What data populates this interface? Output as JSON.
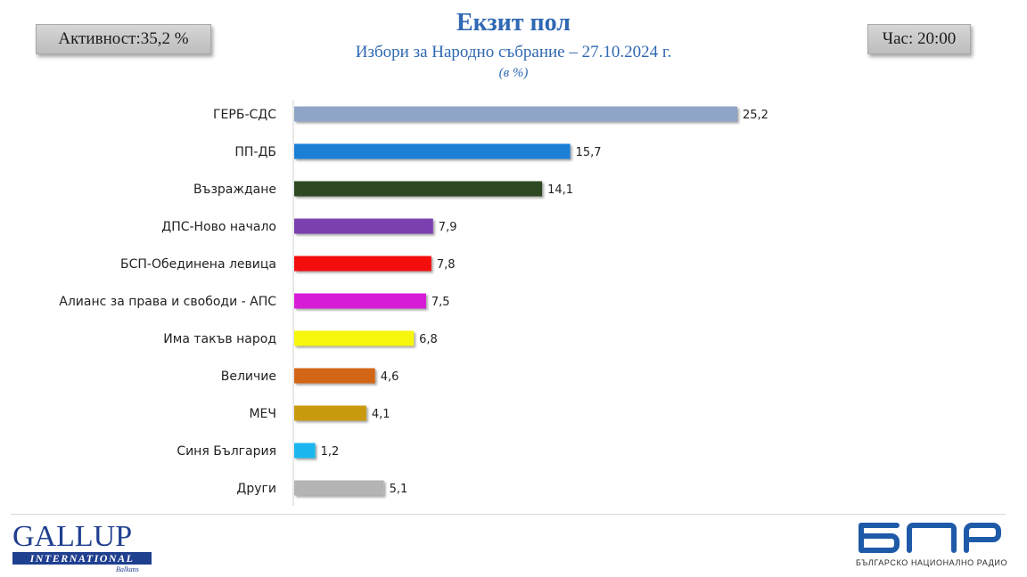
{
  "header": {
    "activity_label": "Активност:35,2 %",
    "time_label": "Час: 20:00",
    "title": "Екзит пол",
    "subtitle": "Избори за Народно събрание – 27.10.2024 г.",
    "unit": "(в %)"
  },
  "chart_data": {
    "type": "bar",
    "orientation": "horizontal",
    "title": "Екзит пол",
    "subtitle": "Избори за Народно събрание – 27.10.2024 г.",
    "unit": "(в %)",
    "categories": [
      "ГЕРБ-СДС",
      "ПП-ДБ",
      "Възраждане",
      "ДПС-Ново начало",
      "БСП-Обединена левица",
      "Алианс за права и свободи - АПС",
      "Има такъв народ",
      "Величие",
      "МЕЧ",
      "Синя България",
      "Други"
    ],
    "values": [
      25.2,
      15.7,
      14.1,
      7.9,
      7.8,
      7.5,
      6.8,
      4.6,
      4.1,
      1.2,
      5.1
    ],
    "value_labels": [
      "25,2",
      "15,7",
      "14,1",
      "7,9",
      "7,8",
      "7,5",
      "6,8",
      "4,6",
      "4,1",
      "1,2",
      "5,1"
    ],
    "colors": [
      "#8fa5c8",
      "#1f7fd6",
      "#2f4a22",
      "#7a3fb0",
      "#f40f0f",
      "#d61cd6",
      "#f7f70f",
      "#d26617",
      "#c99a10",
      "#1cb6ee",
      "#b4b4b4"
    ],
    "xlim": [
      0,
      26
    ],
    "grid": false,
    "legend": "none"
  },
  "footer": {
    "gallup_main": "GALLUP",
    "gallup_bar": "INTERNATIONAL",
    "gallup_sub": "Balkans",
    "bnr_text": "БЪЛГАРСКО НАЦИОНАЛНО РАДИО"
  }
}
